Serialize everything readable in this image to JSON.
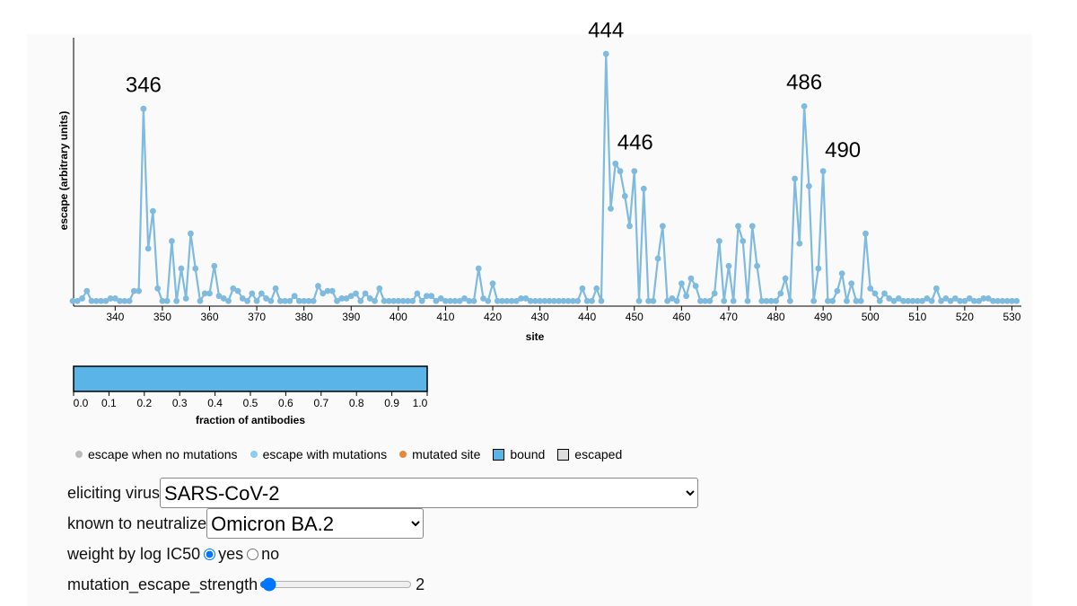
{
  "chart_data": {
    "type": "line",
    "xlabel": "site",
    "ylabel": "escape (arbitrary units)",
    "x": [
      331,
      332,
      333,
      334,
      335,
      336,
      337,
      338,
      339,
      340,
      341,
      342,
      343,
      344,
      345,
      346,
      347,
      348,
      349,
      350,
      351,
      352,
      353,
      354,
      355,
      356,
      357,
      358,
      359,
      360,
      361,
      362,
      363,
      364,
      365,
      366,
      367,
      368,
      369,
      370,
      371,
      372,
      373,
      374,
      375,
      376,
      377,
      378,
      379,
      380,
      381,
      382,
      383,
      384,
      385,
      386,
      387,
      388,
      389,
      390,
      391,
      392,
      393,
      394,
      395,
      396,
      397,
      398,
      399,
      400,
      401,
      402,
      403,
      404,
      405,
      406,
      407,
      408,
      409,
      410,
      411,
      412,
      413,
      414,
      415,
      416,
      417,
      418,
      419,
      420,
      421,
      422,
      423,
      424,
      425,
      426,
      427,
      428,
      429,
      430,
      431,
      432,
      433,
      434,
      435,
      436,
      437,
      438,
      439,
      440,
      441,
      442,
      443,
      444,
      445,
      446,
      447,
      448,
      449,
      450,
      451,
      452,
      453,
      454,
      455,
      456,
      457,
      458,
      459,
      460,
      461,
      462,
      463,
      464,
      465,
      466,
      467,
      468,
      469,
      470,
      471,
      472,
      473,
      474,
      475,
      476,
      477,
      478,
      479,
      480,
      481,
      482,
      483,
      484,
      485,
      486,
      487,
      488,
      489,
      490,
      491,
      492,
      493,
      494,
      495,
      496,
      497,
      498,
      499,
      500,
      501,
      502,
      503,
      504,
      505,
      506,
      507,
      508,
      509,
      510,
      511,
      512,
      513,
      514,
      515,
      516,
      517,
      518,
      519,
      520,
      521,
      522,
      523,
      524,
      525,
      526,
      527,
      528,
      529,
      530,
      531
    ],
    "series": [
      {
        "color": "#7fbadf",
        "values": [
          0.01,
          0.01,
          0.02,
          0.05,
          0.01,
          0.01,
          0.01,
          0.01,
          0.02,
          0.02,
          0.01,
          0.01,
          0.01,
          0.05,
          0.05,
          0.78,
          0.22,
          0.37,
          0.06,
          0.01,
          0.01,
          0.25,
          0.01,
          0.14,
          0.02,
          0.28,
          0.14,
          0.01,
          0.04,
          0.04,
          0.15,
          0.03,
          0.02,
          0.01,
          0.06,
          0.05,
          0.02,
          0.01,
          0.04,
          0.01,
          0.04,
          0.02,
          0.01,
          0.06,
          0.01,
          0.01,
          0.01,
          0.03,
          0.01,
          0.01,
          0.01,
          0.01,
          0.07,
          0.04,
          0.05,
          0.05,
          0.01,
          0.02,
          0.02,
          0.03,
          0.04,
          0.01,
          0.04,
          0.02,
          0.01,
          0.06,
          0.01,
          0.01,
          0.01,
          0.01,
          0.01,
          0.01,
          0.01,
          0.04,
          0.01,
          0.03,
          0.03,
          0.01,
          0.02,
          0.01,
          0.01,
          0.01,
          0.01,
          0.02,
          0.01,
          0.01,
          0.14,
          0.02,
          0.01,
          0.08,
          0.01,
          0.01,
          0.01,
          0.01,
          0.01,
          0.02,
          0.02,
          0.01,
          0.01,
          0.01,
          0.01,
          0.01,
          0.01,
          0.01,
          0.01,
          0.01,
          0.01,
          0.01,
          0.06,
          0.01,
          0.01,
          0.06,
          0.01,
          1.0,
          0.38,
          0.56,
          0.53,
          0.43,
          0.31,
          0.53,
          0.01,
          0.46,
          0.01,
          0.01,
          0.18,
          0.31,
          0.01,
          0.02,
          0.01,
          0.08,
          0.03,
          0.1,
          0.07,
          0.01,
          0.01,
          0.01,
          0.04,
          0.25,
          0.01,
          0.15,
          0.01,
          0.31,
          0.25,
          0.01,
          0.31,
          0.15,
          0.01,
          0.01,
          0.01,
          0.01,
          0.04,
          0.1,
          0.01,
          0.5,
          0.24,
          0.79,
          0.47,
          0.01,
          0.14,
          0.53,
          0.01,
          0.01,
          0.05,
          0.12,
          0.01,
          0.08,
          0.01,
          0.01,
          0.28,
          0.06,
          0.04,
          0.01,
          0.04,
          0.02,
          0.01,
          0.02,
          0.01,
          0.01,
          0.01,
          0.01,
          0.01,
          0.02,
          0.01,
          0.06,
          0.01,
          0.02,
          0.01,
          0.02,
          0.01,
          0.01,
          0.02,
          0.01,
          0.01,
          0.02,
          0.02,
          0.01,
          0.01,
          0.01,
          0.01,
          0.01,
          0.01
        ]
      }
    ],
    "xlim": [
      331,
      532
    ],
    "ylim": [
      0,
      1
    ],
    "xticks": [
      340,
      350,
      360,
      370,
      380,
      390,
      400,
      410,
      420,
      430,
      440,
      450,
      460,
      470,
      480,
      490,
      500,
      510,
      520,
      530
    ],
    "annotations": [
      346,
      444,
      446,
      486,
      490
    ],
    "colorbar": {
      "title": "fraction of antibodies",
      "color": "#5ab4e8",
      "lim": [
        0,
        1
      ],
      "ticks": [
        {
          "value": 0,
          "label": "0.0"
        },
        {
          "value": 0.1,
          "label": "0.1"
        },
        {
          "value": 0.2,
          "label": "0.2"
        },
        {
          "value": 0.3,
          "label": "0.3"
        },
        {
          "value": 0.4,
          "label": "0.4"
        },
        {
          "value": 0.5,
          "label": "0.5"
        },
        {
          "value": 0.6,
          "label": "0.6"
        },
        {
          "value": 0.7,
          "label": "0.7"
        },
        {
          "value": 0.8,
          "label": "0.8"
        },
        {
          "value": 0.9,
          "label": "0.9"
        },
        {
          "value": 1,
          "label": "1.0"
        }
      ]
    },
    "legend": [
      {
        "name": "escape when no mutations",
        "color": "#bbbbbb",
        "shape": "dot"
      },
      {
        "name": "escape with mutations",
        "color": "#8ccdf0",
        "shape": "dot"
      },
      {
        "name": "mutated site",
        "color": "#e3893e",
        "shape": "dot"
      },
      {
        "name": "bound",
        "color": "#5ab4e8",
        "shape": "square"
      },
      {
        "name": "escaped",
        "color": "#dddddd",
        "shape": "square"
      }
    ]
  },
  "controls": {
    "eliciting_virus": {
      "label": "eliciting virus",
      "selected": "SARS-CoV-2"
    },
    "known_to_neutralize": {
      "label": "known to neutralize",
      "selected": "Omicron BA.2"
    },
    "weight": {
      "label": "weight by log IC50",
      "options": [
        "yes",
        "no"
      ]
    },
    "slider": {
      "label": "mutation_escape_strength",
      "value": 2
    }
  }
}
